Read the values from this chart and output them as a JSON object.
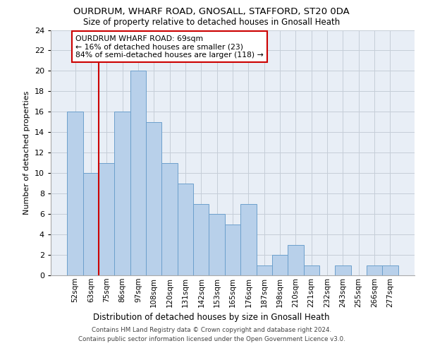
{
  "title1": "OURDRUM, WHARF ROAD, GNOSALL, STAFFORD, ST20 0DA",
  "title2": "Size of property relative to detached houses in Gnosall Heath",
  "xlabel": "Distribution of detached houses by size in Gnosall Heath",
  "ylabel": "Number of detached properties",
  "categories": [
    "52sqm",
    "63sqm",
    "75sqm",
    "86sqm",
    "97sqm",
    "108sqm",
    "120sqm",
    "131sqm",
    "142sqm",
    "153sqm",
    "165sqm",
    "176sqm",
    "187sqm",
    "198sqm",
    "210sqm",
    "221sqm",
    "232sqm",
    "243sqm",
    "255sqm",
    "266sqm",
    "277sqm"
  ],
  "values": [
    16,
    10,
    11,
    16,
    20,
    15,
    11,
    9,
    7,
    6,
    5,
    7,
    1,
    2,
    3,
    1,
    0,
    1,
    0,
    1,
    1
  ],
  "bar_color": "#b8d0ea",
  "bar_edge_color": "#6ca0cc",
  "vline_x": 1.5,
  "vline_color": "#cc0000",
  "annotation_line1": "OURDRUM WHARF ROAD: 69sqm",
  "annotation_line2": "← 16% of detached houses are smaller (23)",
  "annotation_line3": "84% of semi-detached houses are larger (118) →",
  "annotation_box_facecolor": "#ffffff",
  "annotation_box_edgecolor": "#cc0000",
  "ylim": [
    0,
    24
  ],
  "yticks": [
    0,
    2,
    4,
    6,
    8,
    10,
    12,
    14,
    16,
    18,
    20,
    22,
    24
  ],
  "footer1": "Contains HM Land Registry data © Crown copyright and database right 2024.",
  "footer2": "Contains public sector information licensed under the Open Government Licence v3.0.",
  "bg_color": "#e8eef6",
  "grid_color": "#c5cdd8"
}
